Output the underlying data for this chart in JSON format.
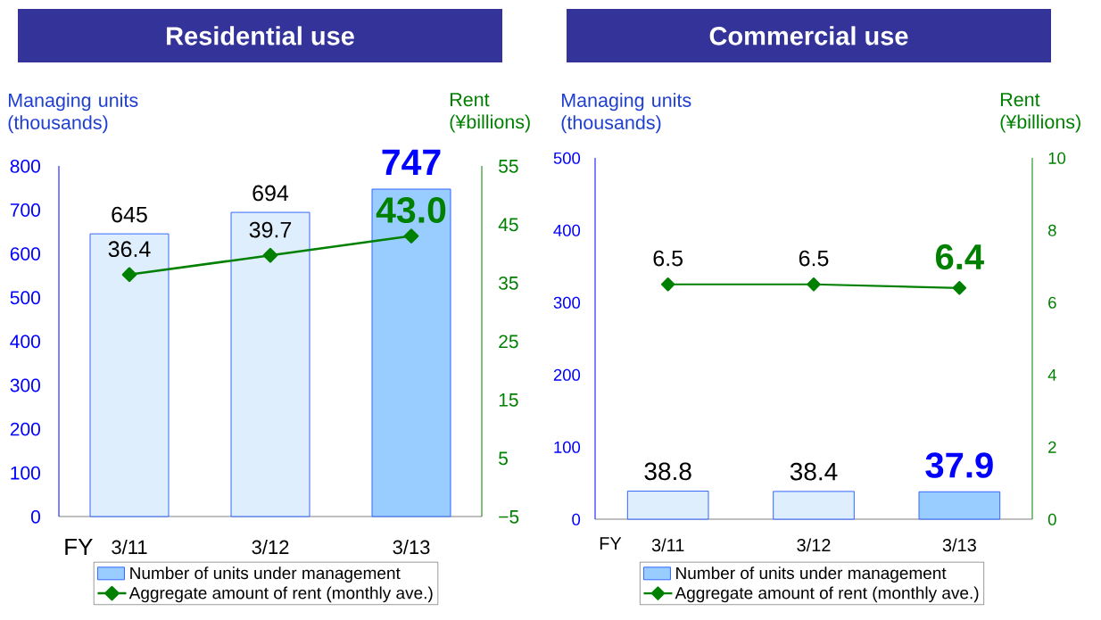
{
  "chart_data": [
    {
      "type": "bar",
      "title": "Residential use",
      "xlabel": "FY",
      "ylabel": "Managing units (thousands)",
      "y2label": "Rent (¥billions)",
      "categories": [
        "3/11",
        "3/12",
        "3/13"
      ],
      "series": [
        {
          "name": "Number of units under management",
          "color": "#99ccff",
          "colors": [
            "#dfeefd",
            "#dfeefd",
            "#99ccff"
          ],
          "values": [
            645,
            694,
            747
          ],
          "value_labels": [
            "645",
            "694",
            "747"
          ]
        },
        {
          "name": "Aggregate amount of rent (monthly ave.)",
          "type": "line",
          "axis": "y2",
          "color": "#008000",
          "values": [
            36.4,
            39.7,
            43.0
          ],
          "value_labels": [
            "36.4",
            "39.7",
            "43.0"
          ]
        }
      ],
      "ylim": [
        0,
        800
      ],
      "yticks": [
        0,
        100,
        200,
        300,
        400,
        500,
        600,
        700,
        800
      ],
      "y2lim": [
        -5,
        55
      ],
      "y2ticks": [
        {
          "value": -5,
          "label": "−5"
        },
        5,
        15,
        25,
        35,
        45,
        55
      ],
      "legend": "bottom",
      "marker": "diamond"
    },
    {
      "type": "bar",
      "title": "Commercial use",
      "xlabel": "FY",
      "ylabel": "Managing units (thousands)",
      "y2label": "Rent (¥billions)",
      "categories": [
        "3/11",
        "3/12",
        "3/13"
      ],
      "series": [
        {
          "name": "Number of units under management",
          "color": "#99ccff",
          "colors": [
            "#dfeefd",
            "#dfeefd",
            "#99ccff"
          ],
          "values": [
            38.8,
            38.4,
            37.9
          ]
        },
        {
          "name": "Aggregate amount of rent (monthly ave.)",
          "type": "line",
          "axis": "y2",
          "color": "#008000",
          "values": [
            6.5,
            6.5,
            6.4
          ]
        }
      ],
      "ylim": [
        0,
        500
      ],
      "yticks": [
        0,
        100,
        200,
        300,
        400,
        500
      ],
      "y2lim": [
        0,
        10
      ],
      "y2ticks": [
        0,
        2,
        4,
        6,
        8,
        10
      ],
      "data_labels": true,
      "legend": "bottom",
      "marker": "diamond"
    }
  ]
}
